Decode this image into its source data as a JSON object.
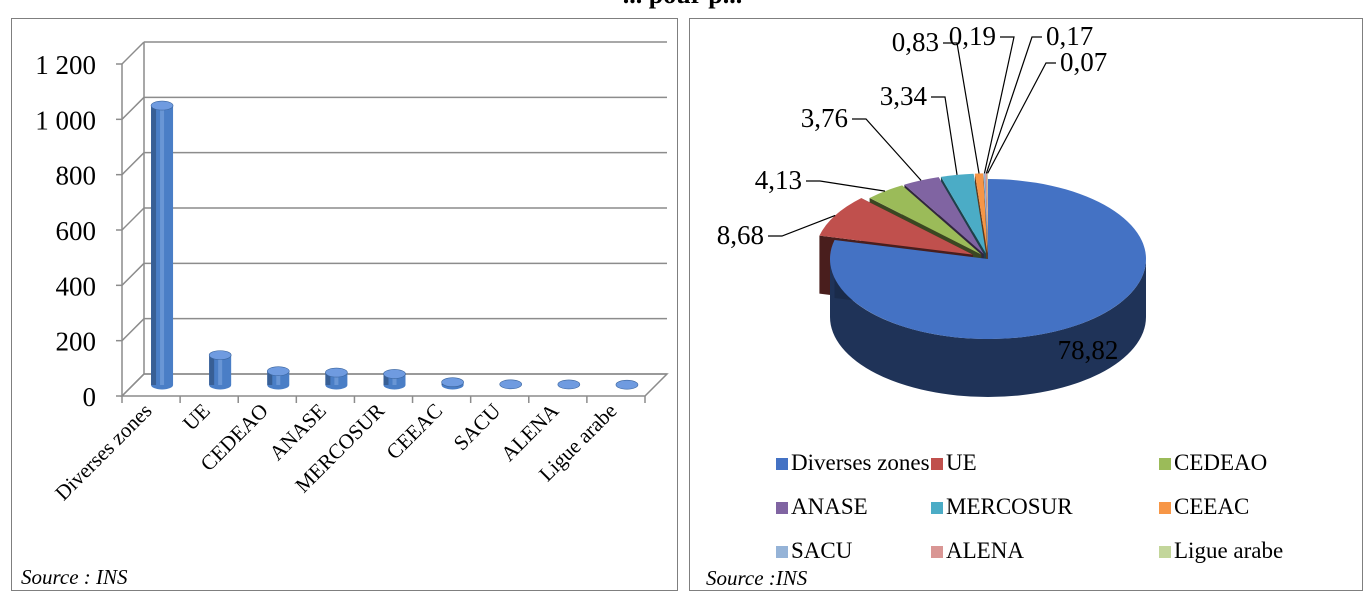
{
  "title": "... pour p...",
  "colors": {
    "diverses": "#4472c4",
    "ue": "#c0504d",
    "cedeao": "#9bbb59",
    "anase": "#8064a2",
    "mercosur": "#4bacc6",
    "ceeac": "#f79646",
    "sacu": "#95b3d7",
    "alena": "#d99694",
    "ligue": "#c3d69b",
    "bar": "#4a7ec6"
  },
  "left": {
    "source": "Source : INS"
  },
  "right": {
    "source": "Source :INS"
  },
  "chart_data": [
    {
      "type": "bar",
      "categories": [
        "Diverses zones",
        "UE",
        "CEDEAO",
        "ANASE",
        "MERCOSUR",
        "CEEAC",
        "SACU",
        "ALENA",
        "Ligue arabe"
      ],
      "values": [
        1010,
        108,
        50,
        45,
        40,
        10,
        2.5,
        2,
        1
      ],
      "ylim": [
        0,
        1200
      ],
      "yticks": [
        "0",
        "200",
        "400",
        "600",
        "800",
        "1 000",
        "1 200"
      ],
      "ytick_values": [
        0,
        200,
        400,
        600,
        800,
        1000,
        1200
      ],
      "grid": true
    },
    {
      "type": "pie",
      "labels": [
        "Diverses zones",
        "UE",
        "CEDEAO",
        "ANASE",
        "MERCOSUR",
        "CEEAC",
        "SACU",
        "ALENA",
        "Ligue arabe"
      ],
      "values": [
        78.82,
        8.68,
        4.13,
        3.76,
        3.34,
        0.83,
        0.19,
        0.17,
        0.07
      ],
      "value_labels": [
        "78,82",
        "8,68",
        "4,13",
        "3,76",
        "3,34",
        "0,83",
        "0,19",
        "0,17",
        "0,07"
      ],
      "legend_position": "bottom"
    }
  ]
}
